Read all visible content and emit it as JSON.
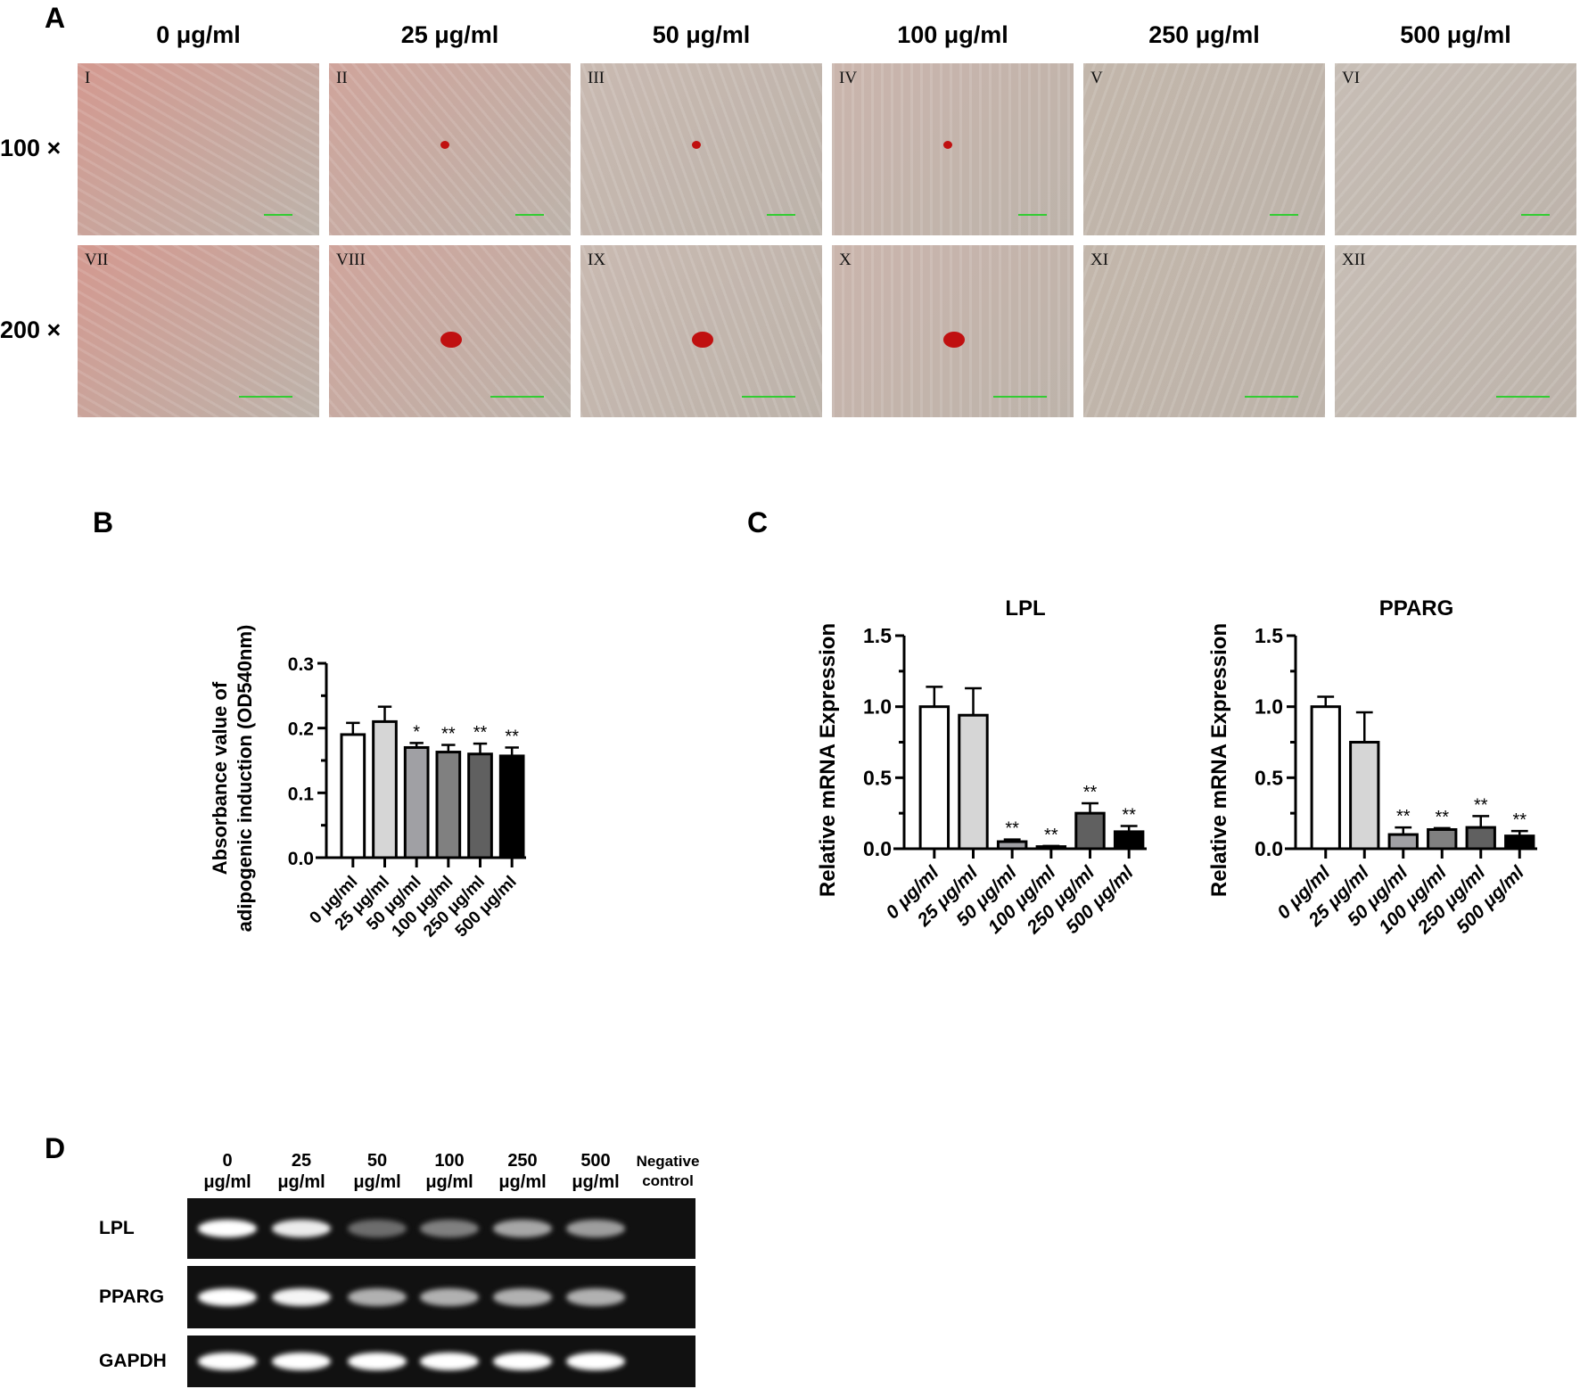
{
  "panel_A": {
    "label": "A",
    "columns": [
      "0 μg/ml",
      "25 μg/ml",
      "50 μg/ml",
      "100 μg/ml",
      "250 μg/ml",
      "500 μg/ml"
    ],
    "rows": [
      "100 ×",
      "200 ×"
    ],
    "image_numerals": [
      [
        "I",
        "II",
        "III",
        "IV",
        "V",
        "VI"
      ],
      [
        "VII",
        "VIII",
        "IX",
        "X",
        "XI",
        "XII"
      ]
    ]
  },
  "panel_B": {
    "label": "B"
  },
  "panel_C": {
    "label": "C"
  },
  "panel_D": {
    "label": "D",
    "lanes": [
      [
        "0",
        "μg/ml"
      ],
      [
        "25",
        "μg/ml"
      ],
      [
        "50",
        "μg/ml"
      ],
      [
        "100",
        "μg/ml"
      ],
      [
        "250",
        "μg/ml"
      ],
      [
        "500",
        "μg/ml"
      ],
      [
        "Negative",
        "control"
      ]
    ],
    "genes": [
      "LPL",
      "PPARG",
      "GAPDH"
    ],
    "band_intensity": [
      [
        1,
        0.9,
        0.25,
        0.35,
        0.55,
        0.5,
        0
      ],
      [
        1,
        0.95,
        0.6,
        0.6,
        0.6,
        0.6,
        0
      ],
      [
        1,
        1,
        1,
        1,
        1,
        1,
        0
      ]
    ]
  },
  "chart_data": [
    {
      "type": "bar",
      "title": "",
      "ylabel": "Absorbance value of adipogenic induction (OD540nm)",
      "ylabel_lines": [
        "Absorbance value of",
        "adipogenic induction (OD540nm)"
      ],
      "categories": [
        "0 μg/ml",
        "25 μg/ml",
        "50 μg/ml",
        "100 μg/ml",
        "250 μg/ml",
        "500 μg/ml"
      ],
      "values": [
        0.19,
        0.21,
        0.17,
        0.163,
        0.16,
        0.157
      ],
      "errors": [
        0.018,
        0.023,
        0.007,
        0.011,
        0.016,
        0.013
      ],
      "significance": [
        "",
        "",
        "*",
        "**",
        "**",
        "**"
      ],
      "ylim": [
        0,
        0.3
      ],
      "yticks": [
        "0.0",
        "0.1",
        "0.2",
        "0.3"
      ],
      "colors": [
        "#ffffff",
        "#d6d6d6",
        "#a0a0a4",
        "#808080",
        "#606060",
        "#000000"
      ]
    },
    {
      "type": "bar",
      "title": "LPL",
      "ylabel": "Relative mRNA Expression",
      "categories": [
        "0 μg/ml",
        "25 μg/ml",
        "50 μg/ml",
        "100 μg/ml",
        "250 μg/ml",
        "500 μg/ml"
      ],
      "values": [
        1.0,
        0.94,
        0.05,
        0.015,
        0.25,
        0.12
      ],
      "errors": [
        0.14,
        0.19,
        0.015,
        0.005,
        0.07,
        0.04
      ],
      "significance": [
        "",
        "",
        "**",
        "**",
        "**",
        "**"
      ],
      "ylim": [
        0,
        1.5
      ],
      "yticks": [
        "0.0",
        "0.5",
        "1.0",
        "1.5"
      ],
      "colors": [
        "#ffffff",
        "#d6d6d6",
        "#a0a0a4",
        "#808080",
        "#606060",
        "#000000"
      ]
    },
    {
      "type": "bar",
      "title": "PPARG",
      "ylabel": "Relative mRNA Expression",
      "categories": [
        "0 μg/ml",
        "25 μg/ml",
        "50 μg/ml",
        "100 μg/ml",
        "250 μg/ml",
        "500 μg/ml"
      ],
      "values": [
        1.0,
        0.75,
        0.1,
        0.135,
        0.15,
        0.09
      ],
      "errors": [
        0.07,
        0.21,
        0.05,
        0.01,
        0.08,
        0.035
      ],
      "significance": [
        "",
        "",
        "**",
        "**",
        "**",
        "**"
      ],
      "ylim": [
        0,
        1.5
      ],
      "yticks": [
        "0.0",
        "0.5",
        "1.0",
        "1.5"
      ],
      "colors": [
        "#ffffff",
        "#d6d6d6",
        "#a0a0a4",
        "#808080",
        "#606060",
        "#000000"
      ]
    }
  ]
}
